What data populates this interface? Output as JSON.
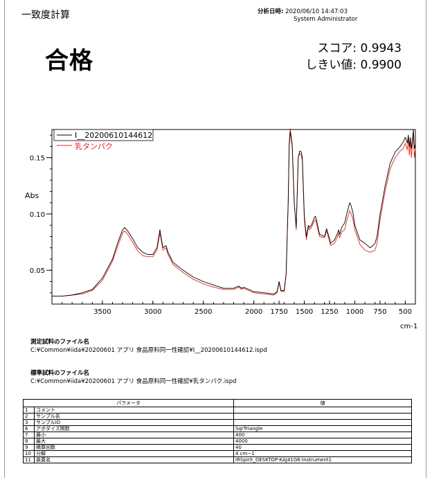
{
  "header": {
    "title": "一致度計算",
    "datetime_label": "分析日時:",
    "datetime_value": "2020/06/10 14:47:03",
    "user": "System Administrator"
  },
  "result": {
    "verdict": "合格",
    "score_label": "スコア:",
    "score_value": "0.9943",
    "threshold_label": "しきい値:",
    "threshold_value": "0.9900"
  },
  "colors": {
    "sample": "#000000",
    "reference": "#e8231f"
  },
  "chart_data": {
    "type": "line",
    "title": "",
    "xlabel": "cm-1",
    "ylabel": "Abs",
    "xlim": [
      4000,
      400
    ],
    "ylim": [
      0.02,
      0.175
    ],
    "x_ticks": [
      "3500",
      "3000",
      "2500",
      "2000",
      "1750",
      "1500",
      "1250",
      "1000",
      "750",
      "500"
    ],
    "y_ticks": [
      "0.05",
      "0.10",
      "0.15"
    ],
    "legend_position": "top-left",
    "series": [
      {
        "name": "I__20200610144612",
        "color": "#000000",
        "x": [
          4000,
          3900,
          3800,
          3700,
          3600,
          3500,
          3400,
          3350,
          3300,
          3280,
          3250,
          3200,
          3150,
          3100,
          3050,
          3000,
          2960,
          2930,
          2920,
          2900,
          2870,
          2850,
          2800,
          2700,
          2600,
          2500,
          2400,
          2300,
          2200,
          2150,
          2120,
          2100,
          2050,
          2000,
          1900,
          1800,
          1770,
          1750,
          1730,
          1700,
          1680,
          1660,
          1650,
          1640,
          1620,
          1600,
          1580,
          1560,
          1545,
          1530,
          1520,
          1500,
          1480,
          1460,
          1450,
          1430,
          1400,
          1390,
          1380,
          1350,
          1300,
          1280,
          1250,
          1240,
          1200,
          1170,
          1160,
          1150,
          1130,
          1100,
          1080,
          1060,
          1050,
          1040,
          1020,
          1000,
          950,
          900,
          850,
          820,
          800,
          780,
          750,
          700,
          650,
          600,
          550,
          520,
          500,
          480,
          470,
          460,
          450,
          440,
          430,
          420,
          410,
          400
        ],
        "values": [
          0.027,
          0.027,
          0.028,
          0.03,
          0.033,
          0.043,
          0.06,
          0.074,
          0.086,
          0.088,
          0.085,
          0.078,
          0.07,
          0.066,
          0.064,
          0.064,
          0.07,
          0.086,
          0.08,
          0.07,
          0.072,
          0.066,
          0.057,
          0.05,
          0.044,
          0.04,
          0.037,
          0.034,
          0.034,
          0.036,
          0.034,
          0.035,
          0.033,
          0.031,
          0.03,
          0.029,
          0.031,
          0.04,
          0.032,
          0.032,
          0.047,
          0.11,
          0.16,
          0.173,
          0.16,
          0.11,
          0.088,
          0.15,
          0.156,
          0.155,
          0.15,
          0.098,
          0.08,
          0.09,
          0.088,
          0.09,
          0.097,
          0.098,
          0.095,
          0.082,
          0.08,
          0.087,
          0.078,
          0.074,
          0.077,
          0.083,
          0.086,
          0.082,
          0.088,
          0.092,
          0.1,
          0.107,
          0.11,
          0.108,
          0.102,
          0.09,
          0.077,
          0.074,
          0.07,
          0.072,
          0.074,
          0.08,
          0.1,
          0.125,
          0.145,
          0.155,
          0.16,
          0.164,
          0.168,
          0.163,
          0.17,
          0.16,
          0.168,
          0.158,
          0.165,
          0.175,
          0.158,
          0.162
        ]
      },
      {
        "name": "乳タンパク",
        "color": "#e8231f",
        "x": [
          4000,
          3900,
          3800,
          3700,
          3600,
          3500,
          3400,
          3350,
          3300,
          3280,
          3250,
          3200,
          3150,
          3100,
          3050,
          3000,
          2960,
          2930,
          2920,
          2900,
          2870,
          2850,
          2800,
          2700,
          2600,
          2500,
          2400,
          2300,
          2200,
          2150,
          2120,
          2100,
          2050,
          2000,
          1900,
          1800,
          1770,
          1750,
          1730,
          1700,
          1680,
          1660,
          1650,
          1640,
          1620,
          1600,
          1580,
          1560,
          1545,
          1530,
          1520,
          1500,
          1480,
          1460,
          1450,
          1430,
          1400,
          1390,
          1380,
          1350,
          1300,
          1280,
          1250,
          1240,
          1200,
          1170,
          1160,
          1150,
          1130,
          1100,
          1080,
          1060,
          1050,
          1040,
          1020,
          1000,
          950,
          900,
          850,
          820,
          800,
          780,
          750,
          700,
          650,
          600,
          550,
          520,
          500,
          480,
          470,
          460,
          450,
          440,
          430,
          420,
          410,
          400
        ],
        "values": [
          0.027,
          0.027,
          0.028,
          0.029,
          0.032,
          0.041,
          0.058,
          0.071,
          0.083,
          0.085,
          0.082,
          0.075,
          0.067,
          0.063,
          0.062,
          0.062,
          0.068,
          0.083,
          0.078,
          0.068,
          0.07,
          0.064,
          0.055,
          0.048,
          0.042,
          0.038,
          0.035,
          0.033,
          0.033,
          0.035,
          0.033,
          0.034,
          0.032,
          0.03,
          0.029,
          0.028,
          0.03,
          0.039,
          0.031,
          0.031,
          0.046,
          0.112,
          0.163,
          0.176,
          0.162,
          0.11,
          0.086,
          0.15,
          0.154,
          0.152,
          0.147,
          0.095,
          0.077,
          0.088,
          0.086,
          0.088,
          0.094,
          0.095,
          0.092,
          0.08,
          0.079,
          0.085,
          0.076,
          0.072,
          0.074,
          0.08,
          0.083,
          0.079,
          0.084,
          0.086,
          0.094,
          0.1,
          0.103,
          0.101,
          0.096,
          0.086,
          0.073,
          0.068,
          0.066,
          0.067,
          0.068,
          0.074,
          0.095,
          0.12,
          0.14,
          0.15,
          0.156,
          0.158,
          0.163,
          0.157,
          0.168,
          0.152,
          0.165,
          0.15,
          0.16,
          0.172,
          0.15,
          0.158
        ]
      }
    ]
  },
  "files": {
    "sample_heading": "測定試料のファイル名",
    "sample_path": "C:¥Common¥iida¥20200601 アプリ 食品原料同一性確認¥I__20200610144612.ispd",
    "reference_heading": "標準試料のファイル名",
    "reference_path": "C:¥Common¥iida¥20200601 アプリ 食品原料同一性確認¥乳タンパク.ispd"
  },
  "params": {
    "col_param": "パラメータ",
    "col_value": "値",
    "rows": [
      {
        "no": "1",
        "name": "コメント",
        "value": ""
      },
      {
        "no": "2",
        "name": "サンプル名",
        "value": ""
      },
      {
        "no": "3",
        "name": "サンプルID",
        "value": ""
      },
      {
        "no": "6",
        "name": "アポダイズ関数",
        "value": "SqrTriangle"
      },
      {
        "no": "7",
        "name": "最小",
        "value": "400"
      },
      {
        "no": "8",
        "name": "最大",
        "value": "4000"
      },
      {
        "no": "9",
        "name": "積算回数",
        "value": "40"
      },
      {
        "no": "10",
        "name": "分解",
        "value": "4 cm−1"
      },
      {
        "no": "11",
        "name": "装置名",
        "value": "IRSpirit_DESKTOP-KAJ41G6-Instrument1"
      }
    ]
  }
}
